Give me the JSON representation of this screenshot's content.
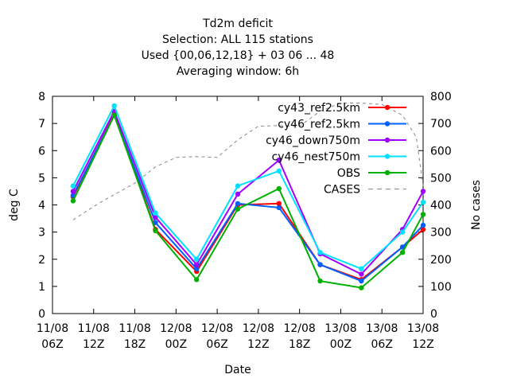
{
  "chart_data": {
    "type": "line",
    "title_lines": [
      "Td2m deficit",
      "Selection: ALL    115 stations",
      "Used {00,06,12,18} + 03 06 ... 48",
      "Averaging window:  6h"
    ],
    "xlabel": "Date",
    "ylabel": "deg C",
    "y2label": "No cases",
    "xlim": [
      0,
      54
    ],
    "ylim": [
      0,
      8
    ],
    "y2lim": [
      0,
      800
    ],
    "x_ticks": [
      {
        "x": 0,
        "line1": "11/08",
        "line2": "06Z"
      },
      {
        "x": 6,
        "line1": "11/08",
        "line2": "12Z"
      },
      {
        "x": 12,
        "line1": "11/08",
        "line2": "18Z"
      },
      {
        "x": 18,
        "line1": "12/08",
        "line2": "00Z"
      },
      {
        "x": 24,
        "line1": "12/08",
        "line2": "06Z"
      },
      {
        "x": 30,
        "line1": "12/08",
        "line2": "12Z"
      },
      {
        "x": 36,
        "line1": "12/08",
        "line2": "18Z"
      },
      {
        "x": 42,
        "line1": "13/08",
        "line2": "00Z"
      },
      {
        "x": 48,
        "line1": "13/08",
        "line2": "06Z"
      },
      {
        "x": 54,
        "line1": "13/08",
        "line2": "12Z"
      }
    ],
    "y_ticks": [
      0,
      1,
      2,
      3,
      4,
      5,
      6,
      7,
      8
    ],
    "y2_ticks": [
      0,
      100,
      200,
      300,
      400,
      500,
      600,
      700,
      800
    ],
    "x": [
      3,
      9,
      15,
      21,
      27,
      33,
      39,
      45,
      51,
      54
    ],
    "series": [
      {
        "name": "cy43_ref2.5km",
        "color": "#ff0000",
        "values": [
          4.3,
          7.35,
          3.1,
          1.55,
          4.0,
          4.05,
          1.8,
          1.25,
          2.45,
          3.1
        ]
      },
      {
        "name": "cy46_ref2.5km",
        "color": "#0060ff",
        "values": [
          4.35,
          7.3,
          3.35,
          1.65,
          4.05,
          3.9,
          1.8,
          1.2,
          2.45,
          3.25
        ]
      },
      {
        "name": "cy46_down750m",
        "color": "#a000ff",
        "values": [
          4.5,
          7.45,
          3.55,
          1.8,
          4.4,
          5.65,
          2.2,
          1.45,
          3.1,
          4.5
        ]
      },
      {
        "name": "cy46_nest750m",
        "color": "#00e0ff",
        "values": [
          4.7,
          7.65,
          3.7,
          2.0,
          4.7,
          5.25,
          2.25,
          1.65,
          3.0,
          4.1
        ]
      },
      {
        "name": "OBS",
        "color": "#00b000",
        "values": [
          4.15,
          7.3,
          3.05,
          1.25,
          3.85,
          4.6,
          1.2,
          0.95,
          2.25,
          3.65
        ]
      }
    ],
    "cases": {
      "name": "CASES",
      "color": "#888888",
      "dash": true,
      "x": [
        3,
        7,
        12,
        15,
        18,
        21,
        24,
        27,
        30,
        33,
        36,
        39,
        42,
        45,
        48,
        51,
        53,
        54
      ],
      "values": [
        345,
        410,
        480,
        540,
        575,
        578,
        575,
        640,
        690,
        692,
        690,
        745,
        775,
        775,
        770,
        730,
        650,
        470
      ]
    },
    "legend_position": "top-right",
    "grid": false
  }
}
